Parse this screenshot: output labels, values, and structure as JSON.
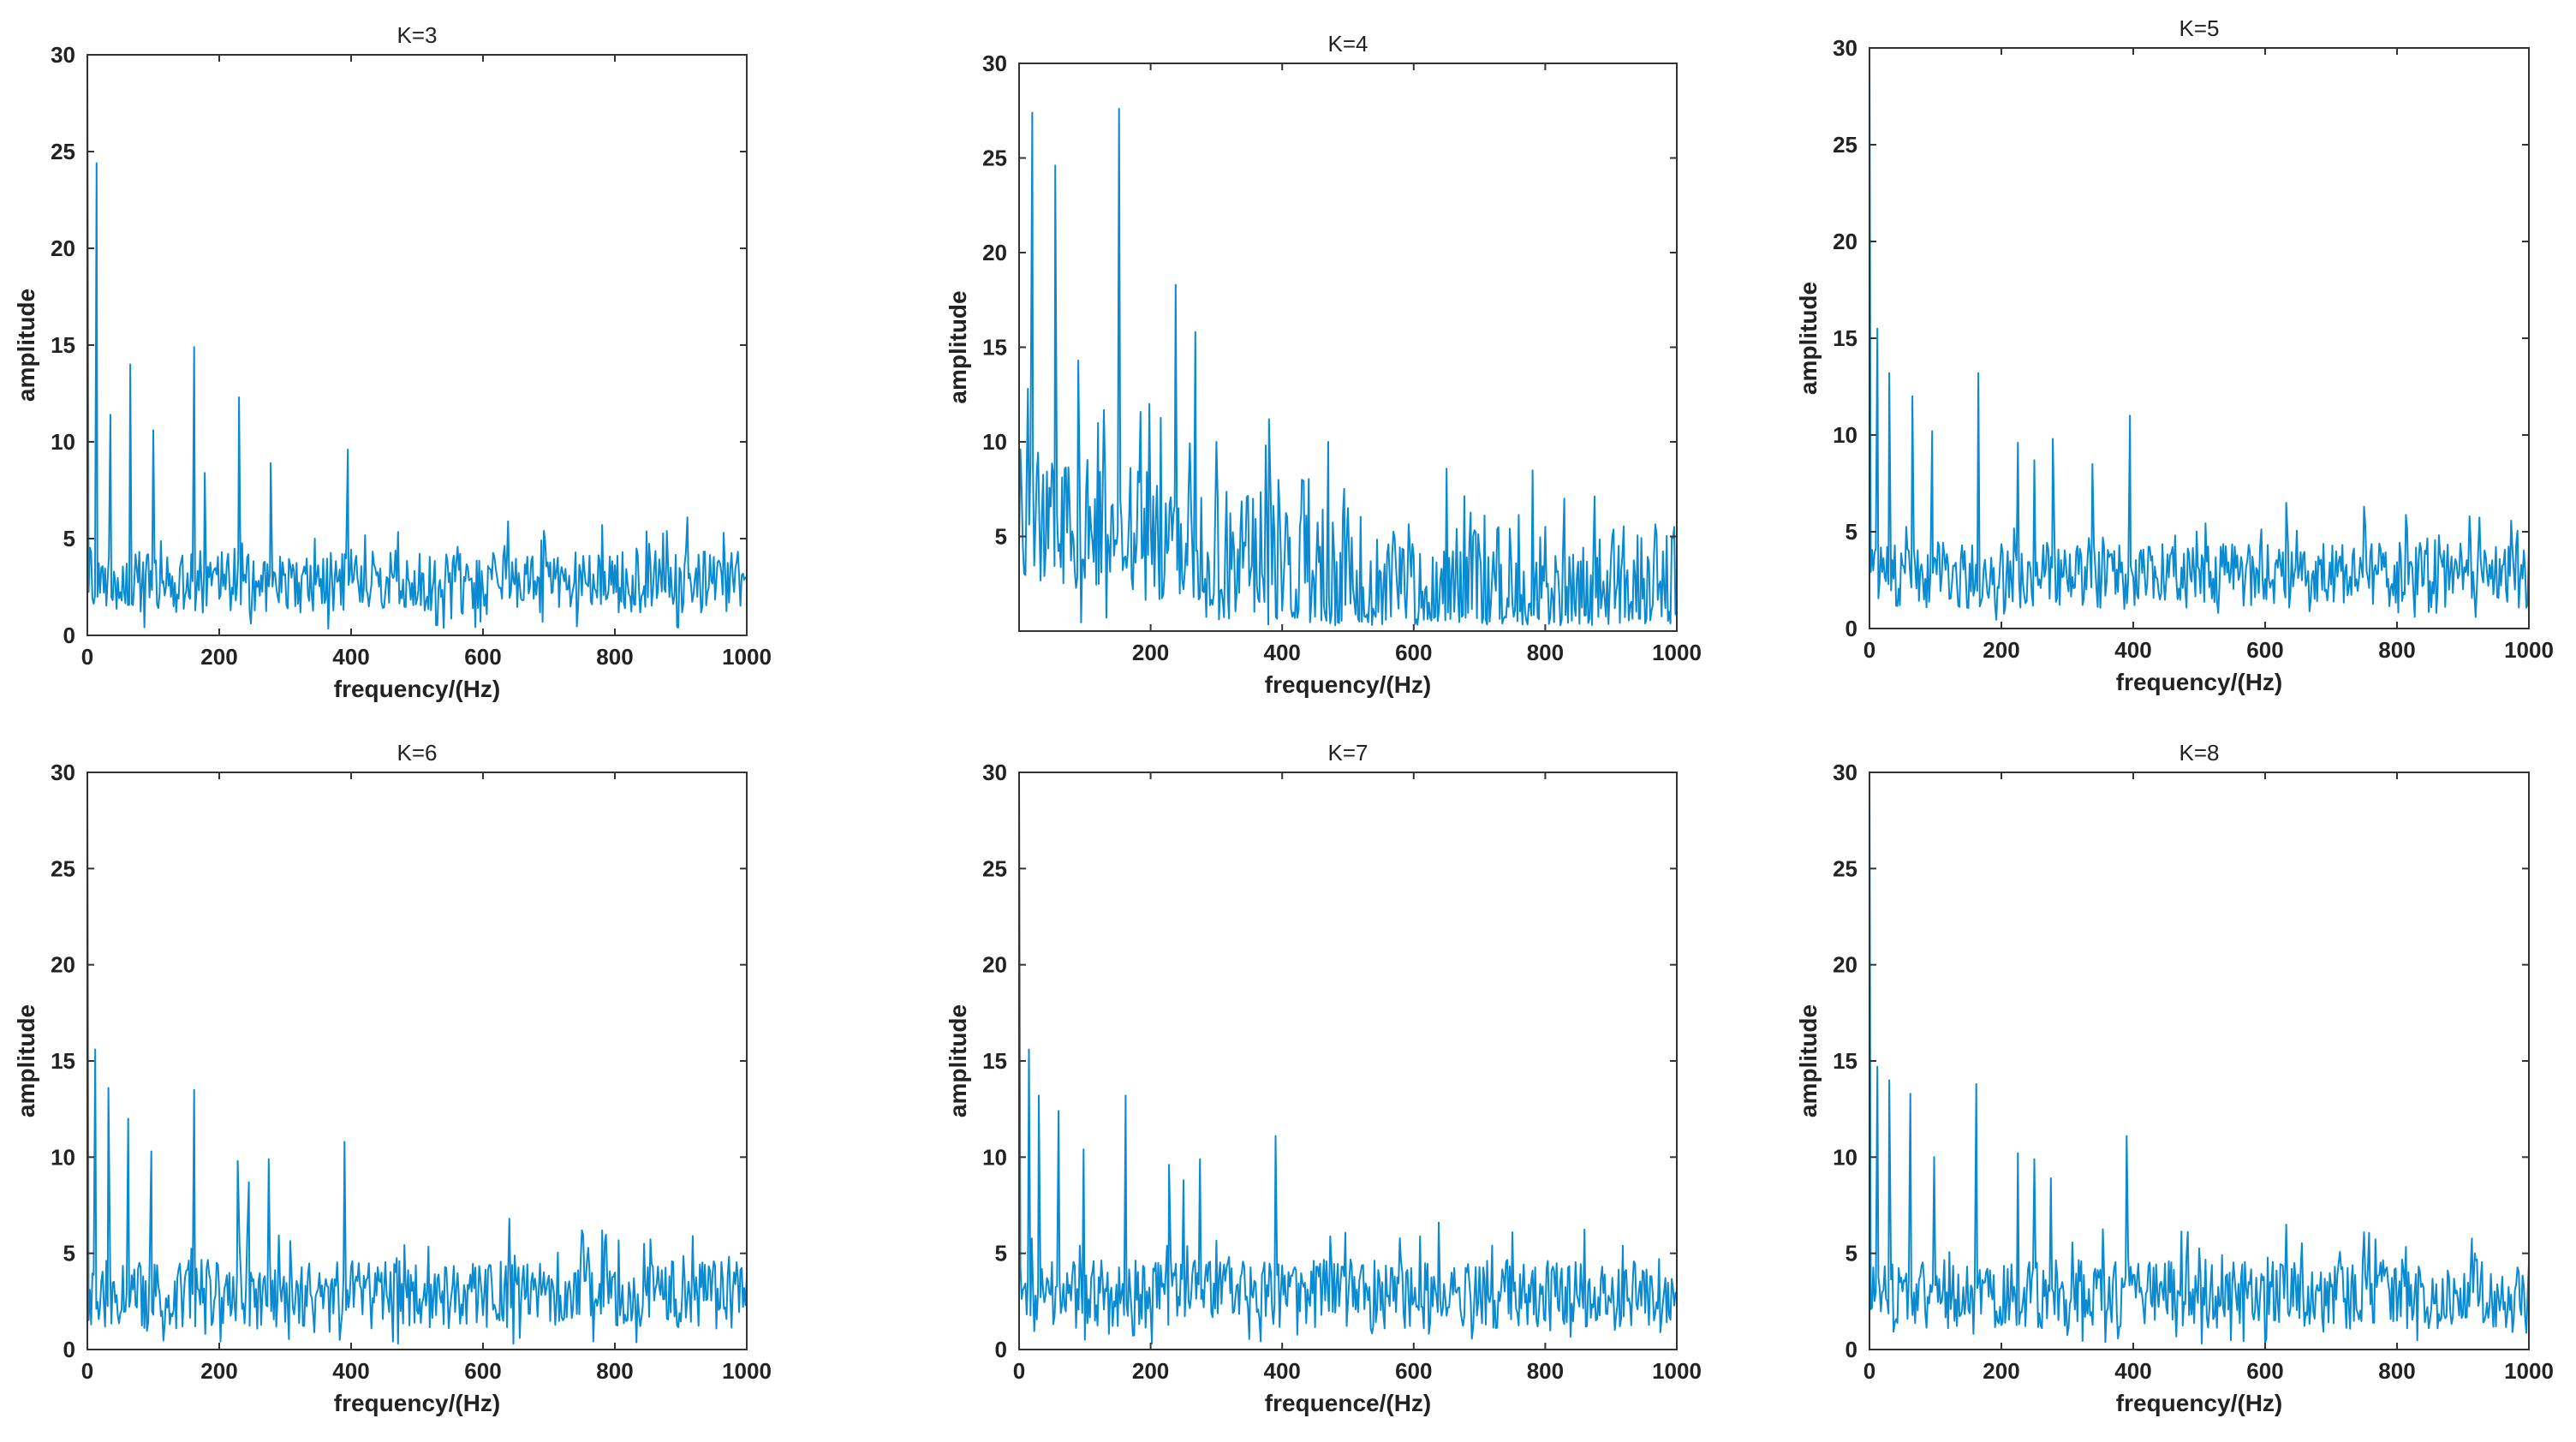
{
  "figure": {
    "description_hidden": false
  },
  "chart_data": [
    {
      "type": "line",
      "title": "K=3",
      "xlabel": "frequency/(Hz)",
      "ylabel": "amplitude",
      "xlim": [
        0,
        1000
      ],
      "ylim": [
        0,
        30
      ],
      "xticks": [
        0,
        200,
        400,
        600,
        800,
        1000
      ],
      "yticks": [
        0,
        5,
        10,
        15,
        20,
        25,
        30
      ],
      "series": [
        {
          "name": "spectrum",
          "color": "#0a8ad0",
          "peaks": [
            [
              0,
              30
            ],
            [
              14,
              24.4
            ],
            [
              35,
              11.4
            ],
            [
              65,
              14
            ],
            [
              100,
              10.6
            ],
            [
              162,
              14.9
            ],
            [
              178,
              8.4
            ],
            [
              230,
              12.3
            ],
            [
              278,
              8.9
            ],
            [
              345,
              5
            ],
            [
              395,
              9.6
            ],
            [
              638,
              5.9
            ],
            [
              910,
              6.1
            ],
            [
              965,
              5.3
            ]
          ],
          "baseline": 2.6,
          "noise": 1.6,
          "seed": 3
        }
      ]
    },
    {
      "type": "line",
      "title": "K=4",
      "xlabel": "frequency/(Hz)",
      "ylabel": "amplitude",
      "xlim": [
        0,
        1000
      ],
      "ylim": [
        0,
        30
      ],
      "xticks": [
        200,
        400,
        600,
        800,
        1000
      ],
      "yticks": [
        5,
        10,
        15,
        20,
        25,
        30
      ],
      "series": [
        {
          "name": "spectrum",
          "color": "#0a8ad0",
          "peaks": [
            [
              20,
              27.4
            ],
            [
              55,
              24.6
            ],
            [
              90,
              14.3
            ],
            [
              120,
              11
            ],
            [
              152,
              27.6
            ],
            [
              198,
              12
            ],
            [
              238,
              18.3
            ],
            [
              268,
              15.8
            ],
            [
              300,
              10
            ],
            [
              380,
              11.2
            ],
            [
              430,
              8
            ],
            [
              470,
              10
            ],
            [
              500,
              6.5
            ]
          ],
          "baseline": 6,
          "noise": 3.5,
          "seed": 4,
          "decay_to": 1.8
        }
      ]
    },
    {
      "type": "line",
      "title": "K=5",
      "xlabel": "frequency/(Hz)",
      "ylabel": "amplitude",
      "xlim": [
        0,
        1000
      ],
      "ylim": [
        0,
        30
      ],
      "xticks": [
        0,
        200,
        400,
        600,
        800,
        1000
      ],
      "yticks": [
        0,
        5,
        10,
        15,
        20,
        25,
        30
      ],
      "series": [
        {
          "name": "spectrum",
          "color": "#0a8ad0",
          "peaks": [
            [
              0,
              30
            ],
            [
              12,
              15.5
            ],
            [
              30,
              13.2
            ],
            [
              65,
              12
            ],
            [
              95,
              10.2
            ],
            [
              165,
              13.2
            ],
            [
              225,
              9.6
            ],
            [
              250,
              8.7
            ],
            [
              278,
              9.8
            ],
            [
              338,
              8.5
            ],
            [
              395,
              11
            ],
            [
              632,
              6.5
            ],
            [
              750,
              6.3
            ],
            [
              910,
              5.8
            ]
          ],
          "baseline": 2.6,
          "noise": 1.7,
          "seed": 5
        }
      ]
    },
    {
      "type": "line",
      "title": "K=6",
      "xlabel": "frequency/(Hz)",
      "ylabel": "amplitude",
      "xlim": [
        0,
        1000
      ],
      "ylim": [
        0,
        30
      ],
      "xticks": [
        0,
        200,
        400,
        600,
        800,
        1000
      ],
      "yticks": [
        0,
        5,
        10,
        15,
        20,
        25,
        30
      ],
      "series": [
        {
          "name": "spectrum",
          "color": "#0a8ad0",
          "peaks": [
            [
              0,
              30
            ],
            [
              12,
              15.6
            ],
            [
              32,
              13.6
            ],
            [
              62,
              12
            ],
            [
              97,
              10.3
            ],
            [
              162,
              13.5
            ],
            [
              228,
              9.8
            ],
            [
              245,
              8.7
            ],
            [
              275,
              9.9
            ],
            [
              390,
              10.8
            ],
            [
              640,
              6.8
            ],
            [
              750,
              6.2
            ],
            [
              918,
              5.9
            ]
          ],
          "baseline": 2.7,
          "noise": 1.8,
          "seed": 6
        }
      ]
    },
    {
      "type": "line",
      "title": "K=7",
      "xlabel": "frequence/(Hz)",
      "ylabel": "amplitude",
      "xlim": [
        0,
        1000
      ],
      "ylim": [
        0,
        30
      ],
      "xticks": [
        0,
        200,
        400,
        600,
        800,
        1000
      ],
      "yticks": [
        0,
        5,
        10,
        15,
        20,
        25,
        30
      ],
      "series": [
        {
          "name": "spectrum",
          "color": "#0a8ad0",
          "peaks": [
            [
              0,
              30
            ],
            [
              15,
              15.6
            ],
            [
              30,
              13.2
            ],
            [
              60,
              12.4
            ],
            [
              98,
              10.4
            ],
            [
              162,
              13.2
            ],
            [
              228,
              9.6
            ],
            [
              250,
              8.8
            ],
            [
              275,
              9.9
            ],
            [
              390,
              11.1
            ],
            [
              638,
              6.6
            ],
            [
              750,
              6.1
            ],
            [
              918,
              5.4
            ]
          ],
          "baseline": 2.7,
          "noise": 1.8,
          "seed": 7
        }
      ]
    },
    {
      "type": "line",
      "title": "K=8",
      "xlabel": "frequency/(Hz)",
      "ylabel": "amplitude",
      "xlim": [
        0,
        1000
      ],
      "ylim": [
        0,
        30
      ],
      "xticks": [
        0,
        200,
        400,
        600,
        800,
        1000
      ],
      "yticks": [
        0,
        5,
        10,
        15,
        20,
        25,
        30
      ],
      "series": [
        {
          "name": "spectrum",
          "color": "#0a8ad0",
          "peaks": [
            [
              0,
              30
            ],
            [
              12,
              14.7
            ],
            [
              30,
              14
            ],
            [
              62,
              13.3
            ],
            [
              98,
              10
            ],
            [
              162,
              13.8
            ],
            [
              225,
              10.2
            ],
            [
              250,
              9.9
            ],
            [
              275,
              8.9
            ],
            [
              390,
              11.1
            ],
            [
              632,
              6.5
            ],
            [
              750,
              6.1
            ],
            [
              918,
              5
            ]
          ],
          "baseline": 2.7,
          "noise": 1.8,
          "seed": 8
        }
      ]
    }
  ]
}
